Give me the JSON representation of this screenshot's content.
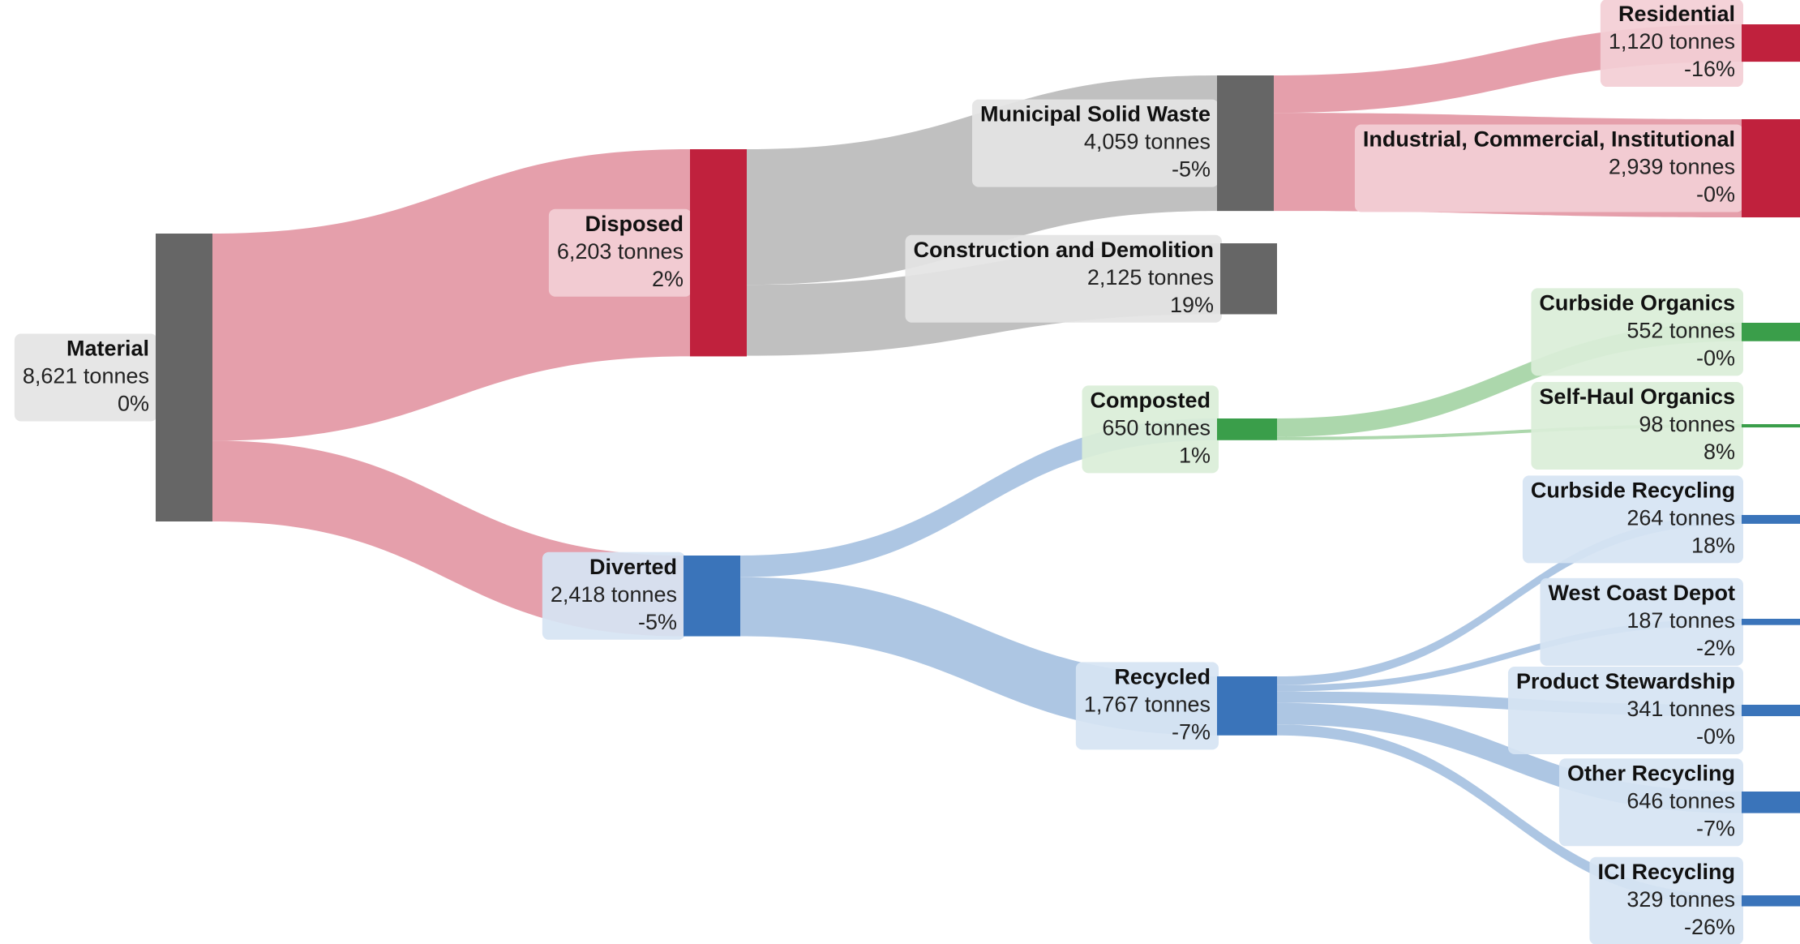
{
  "chart_data": {
    "type": "sankey",
    "unit": "tonnes",
    "colors": {
      "neutral": "#666666",
      "disposed": "#c0213d",
      "composted": "#3a9e4a",
      "recycled": "#3a74ba",
      "link_neutral": "#bdbdbd",
      "link_disposed": "#e49aa6",
      "link_diverted": "#a9c3e2",
      "link_composted": "#a8d5a8"
    },
    "nodes": [
      {
        "id": "material",
        "name": "Material",
        "value": "8,621 tonnes",
        "change": "0%",
        "tonnes": 8621,
        "change_pct": 0
      },
      {
        "id": "disposed",
        "name": "Disposed",
        "value": "6,203 tonnes",
        "change": "2%",
        "tonnes": 6203,
        "change_pct": 2
      },
      {
        "id": "diverted",
        "name": "Diverted",
        "value": "2,418 tonnes",
        "change": "-5%",
        "tonnes": 2418,
        "change_pct": -5
      },
      {
        "id": "msw",
        "name": "Municipal Solid Waste",
        "value": "4,059 tonnes",
        "change": "-5%",
        "tonnes": 4059,
        "change_pct": -5
      },
      {
        "id": "cnd",
        "name": "Construction and Demolition",
        "value": "2,125 tonnes",
        "change": "19%",
        "tonnes": 2125,
        "change_pct": 19
      },
      {
        "id": "composted",
        "name": "Composted",
        "value": "650 tonnes",
        "change": "1%",
        "tonnes": 650,
        "change_pct": 1
      },
      {
        "id": "recycled",
        "name": "Recycled",
        "value": "1,767 tonnes",
        "change": "-7%",
        "tonnes": 1767,
        "change_pct": -7
      },
      {
        "id": "residential",
        "name": "Residential",
        "value": "1,120 tonnes",
        "change": "-16%",
        "tonnes": 1120,
        "change_pct": -16
      },
      {
        "id": "ici",
        "name": "Industrial, Commercial, Institutional",
        "value": "2,939 tonnes",
        "change": "-0%",
        "tonnes": 2939,
        "change_pct": 0
      },
      {
        "id": "curb_org",
        "name": "Curbside Organics",
        "value": "552 tonnes",
        "change": "-0%",
        "tonnes": 552,
        "change_pct": 0
      },
      {
        "id": "self_org",
        "name": "Self-Haul Organics",
        "value": "98 tonnes",
        "change": "8%",
        "tonnes": 98,
        "change_pct": 8
      },
      {
        "id": "curb_rec",
        "name": "Curbside Recycling",
        "value": "264 tonnes",
        "change": "18%",
        "tonnes": 264,
        "change_pct": 18
      },
      {
        "id": "wcd",
        "name": "West Coast Depot",
        "value": "187 tonnes",
        "change": "-2%",
        "tonnes": 187,
        "change_pct": -2
      },
      {
        "id": "prod_stew",
        "name": "Product Stewardship",
        "value": "341 tonnes",
        "change": "-0%",
        "tonnes": 341,
        "change_pct": 0
      },
      {
        "id": "other_rec",
        "name": "Other Recycling",
        "value": "646 tonnes",
        "change": "-7%",
        "tonnes": 646,
        "change_pct": -7
      },
      {
        "id": "ici_rec",
        "name": "ICI Recycling",
        "value": "329 tonnes",
        "change": "-26%",
        "tonnes": 329,
        "change_pct": -26
      }
    ],
    "links": [
      {
        "source": "material",
        "target": "disposed",
        "value": 6203
      },
      {
        "source": "material",
        "target": "diverted",
        "value": 2418
      },
      {
        "source": "disposed",
        "target": "msw",
        "value": 4059
      },
      {
        "source": "disposed",
        "target": "cnd",
        "value": 2125
      },
      {
        "source": "msw",
        "target": "residential",
        "value": 1120
      },
      {
        "source": "msw",
        "target": "ici",
        "value": 2939
      },
      {
        "source": "diverted",
        "target": "composted",
        "value": 650
      },
      {
        "source": "diverted",
        "target": "recycled",
        "value": 1767
      },
      {
        "source": "composted",
        "target": "curb_org",
        "value": 552
      },
      {
        "source": "composted",
        "target": "self_org",
        "value": 98
      },
      {
        "source": "recycled",
        "target": "curb_rec",
        "value": 264
      },
      {
        "source": "recycled",
        "target": "wcd",
        "value": 187
      },
      {
        "source": "recycled",
        "target": "prod_stew",
        "value": 341
      },
      {
        "source": "recycled",
        "target": "other_rec",
        "value": 646
      },
      {
        "source": "recycled",
        "target": "ici_rec",
        "value": 329
      }
    ]
  }
}
